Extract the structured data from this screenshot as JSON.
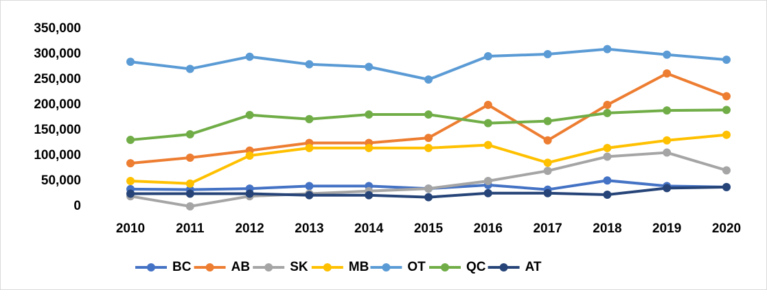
{
  "chart_data": {
    "type": "line",
    "categories": [
      "2010",
      "2011",
      "2012",
      "2013",
      "2014",
      "2015",
      "2016",
      "2017",
      "2018",
      "2019",
      "2020"
    ],
    "series": [
      {
        "name": "BC",
        "color": "#4472c4",
        "values": [
          34000,
          33000,
          35000,
          40000,
          40000,
          35000,
          42000,
          33000,
          51000,
          40000,
          38000
        ]
      },
      {
        "name": "AB",
        "color": "#ed7d31",
        "values": [
          85000,
          96000,
          110000,
          125000,
          125000,
          135000,
          200000,
          130000,
          200000,
          262000,
          217000
        ]
      },
      {
        "name": "SK",
        "color": "#a5a5a5",
        "values": [
          20000,
          0,
          20000,
          25000,
          30000,
          35000,
          50000,
          70000,
          98000,
          106000,
          71000
        ]
      },
      {
        "name": "MB",
        "color": "#ffc000",
        "values": [
          50000,
          45000,
          100000,
          115000,
          115000,
          115000,
          121000,
          86000,
          115000,
          130000,
          141000
        ]
      },
      {
        "name": "OT",
        "color": "#5b9bd5",
        "values": [
          285000,
          271000,
          295000,
          280000,
          275000,
          250000,
          296000,
          300000,
          310000,
          299000,
          289000
        ]
      },
      {
        "name": "QC",
        "color": "#70ad47",
        "values": [
          131000,
          142000,
          180000,
          172000,
          181000,
          181000,
          164000,
          168000,
          184000,
          189000,
          190000
        ]
      },
      {
        "name": "AT",
        "color": "#264478",
        "values": [
          25000,
          25000,
          25000,
          22000,
          22000,
          18000,
          26000,
          26000,
          23000,
          36000,
          38000
        ]
      }
    ],
    "ylim": [
      0,
      350000
    ],
    "yticks": [
      0,
      {
        "value": 50000,
        "label": "50,000"
      },
      {
        "value": 100000,
        "label": "100,000"
      },
      {
        "value": 150000,
        "label": "150,000"
      },
      {
        "value": 200000,
        "label": "200,000"
      },
      {
        "value": 250000,
        "label": "250,000"
      },
      {
        "value": 300000,
        "label": "300,000"
      },
      {
        "value": 350000,
        "label": "350,000"
      }
    ],
    "grid": false,
    "legend": "bottom"
  }
}
